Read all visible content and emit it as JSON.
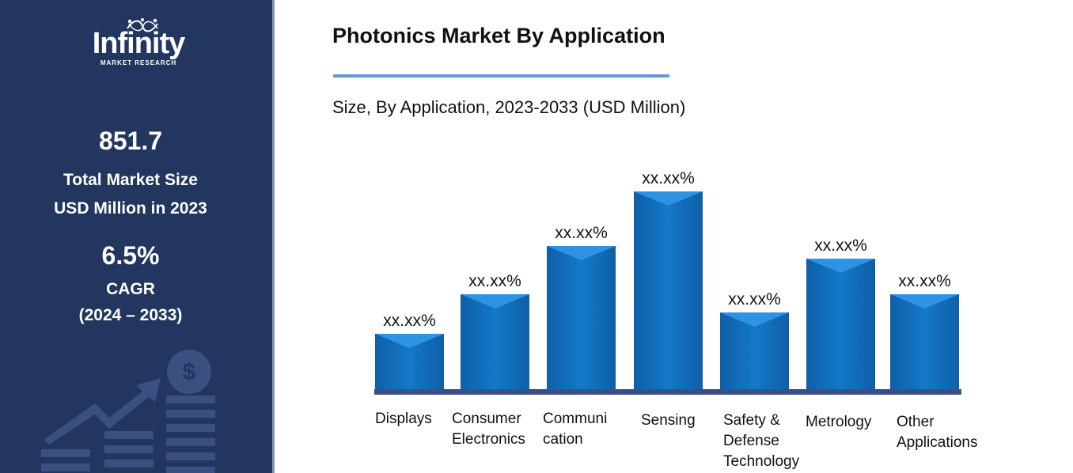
{
  "brand": {
    "name": "Infinity",
    "tagline": "MARKET RESEARCH"
  },
  "sidebar": {
    "market_size_value": "851.7",
    "market_size_label_1": "Total Market Size",
    "market_size_label_2": "USD Million in 2023",
    "cagr_value": "6.5%",
    "cagr_label": "CAGR",
    "cagr_period": "(2024 – 2033)"
  },
  "colors": {
    "sidebar_bg": "#22365f",
    "bar": "#1478c8",
    "bar_top": "#2f93e3",
    "axis": "#3a4f8a",
    "rule": "#5b9bd5"
  },
  "chart_data": {
    "type": "bar",
    "title": "Photonics Market By Application",
    "subtitle": "Size, By Application, 2023-2033 (USD Million)",
    "categories": [
      "Displays",
      "Consumer\nElectronics",
      "Communi\ncation",
      "Sensing",
      "Safety &\nDefense\nTechnology",
      "Metrology",
      "Other\nApplications"
    ],
    "values": [
      70,
      120,
      181,
      250,
      97,
      165,
      120
    ],
    "data_labels": [
      "xx.xx%",
      "xx.xx%",
      "xx.xx%",
      "xx.xx%",
      "xx.xx%",
      "xx.xx%",
      "xx.xx%"
    ],
    "xlabel": "",
    "ylabel": "",
    "grid": false,
    "legend": "none"
  }
}
